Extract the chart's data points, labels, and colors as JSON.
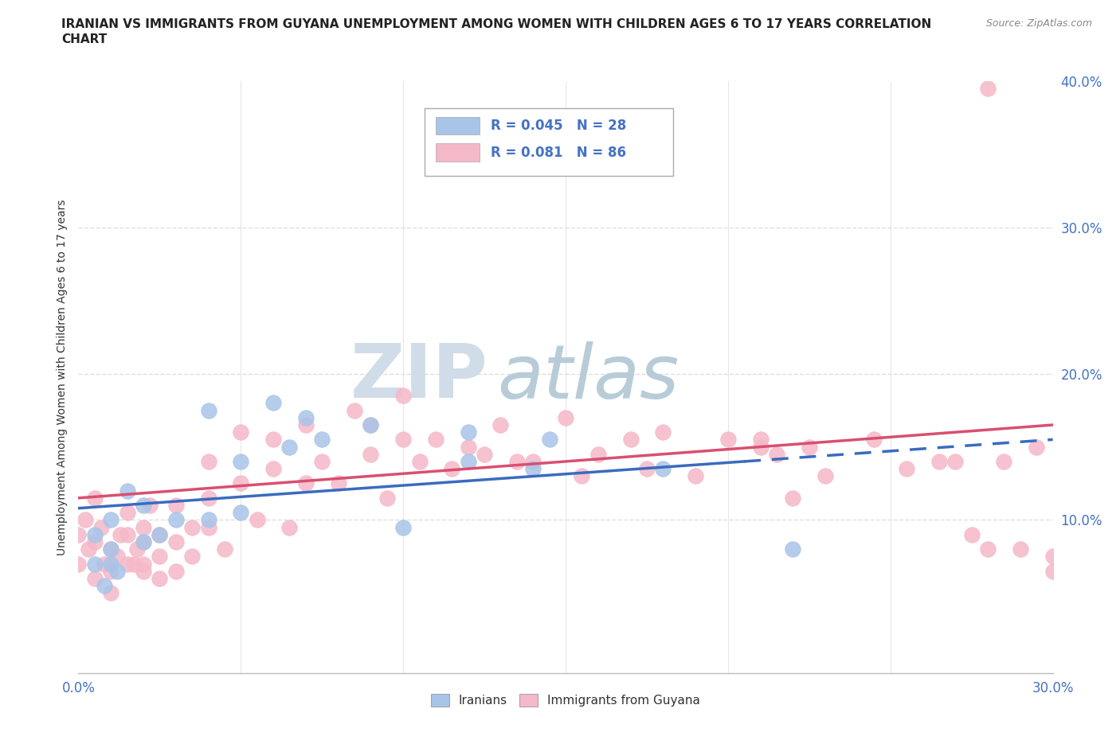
{
  "title_line1": "IRANIAN VS IMMIGRANTS FROM GUYANA UNEMPLOYMENT AMONG WOMEN WITH CHILDREN AGES 6 TO 17 YEARS CORRELATION",
  "title_line2": "CHART",
  "source": "Source: ZipAtlas.com",
  "ylabel": "Unemployment Among Women with Children Ages 6 to 17 years",
  "xlim": [
    0.0,
    0.3
  ],
  "ylim": [
    -0.005,
    0.4
  ],
  "xticks": [
    0.0,
    0.05,
    0.1,
    0.15,
    0.2,
    0.25,
    0.3
  ],
  "yticks": [
    0.0,
    0.1,
    0.2,
    0.3,
    0.4
  ],
  "iranian_color": "#a8c4e8",
  "guyana_color": "#f5b8c8",
  "iranian_line_color": "#3a6bbf",
  "guyana_line_color": "#d94f70",
  "legend_R_iranian": "0.045",
  "legend_N_iranian": "28",
  "legend_R_guyana": "0.081",
  "legend_N_guyana": "86",
  "watermark_zip": "ZIP",
  "watermark_atlas": "atlas",
  "watermark_color_zip": "#d0dde8",
  "watermark_color_atlas": "#b8ccd8",
  "iranians_label": "Iranians",
  "guyana_label": "Immigrants from Guyana",
  "iranians_x": [
    0.005,
    0.005,
    0.008,
    0.01,
    0.01,
    0.01,
    0.012,
    0.015,
    0.02,
    0.02,
    0.025,
    0.03,
    0.04,
    0.04,
    0.05,
    0.05,
    0.06,
    0.065,
    0.07,
    0.075,
    0.09,
    0.1,
    0.12,
    0.12,
    0.14,
    0.145,
    0.18,
    0.22
  ],
  "iranians_y": [
    0.07,
    0.09,
    0.055,
    0.07,
    0.08,
    0.1,
    0.065,
    0.12,
    0.085,
    0.11,
    0.09,
    0.1,
    0.1,
    0.175,
    0.105,
    0.14,
    0.18,
    0.15,
    0.17,
    0.155,
    0.165,
    0.095,
    0.14,
    0.16,
    0.135,
    0.155,
    0.135,
    0.08
  ],
  "guyana_x": [
    0.0,
    0.0,
    0.002,
    0.003,
    0.005,
    0.005,
    0.005,
    0.007,
    0.008,
    0.01,
    0.01,
    0.01,
    0.012,
    0.013,
    0.015,
    0.015,
    0.015,
    0.017,
    0.018,
    0.02,
    0.02,
    0.02,
    0.02,
    0.022,
    0.025,
    0.025,
    0.025,
    0.03,
    0.03,
    0.03,
    0.035,
    0.035,
    0.04,
    0.04,
    0.04,
    0.045,
    0.05,
    0.05,
    0.055,
    0.06,
    0.06,
    0.065,
    0.07,
    0.07,
    0.075,
    0.08,
    0.085,
    0.09,
    0.09,
    0.095,
    0.1,
    0.1,
    0.105,
    0.11,
    0.115,
    0.12,
    0.125,
    0.13,
    0.135,
    0.14,
    0.15,
    0.155,
    0.16,
    0.17,
    0.175,
    0.18,
    0.19,
    0.2,
    0.21,
    0.21,
    0.215,
    0.22,
    0.225,
    0.23,
    0.245,
    0.255,
    0.265,
    0.27,
    0.275,
    0.28,
    0.285,
    0.29,
    0.295,
    0.28,
    0.3,
    0.3
  ],
  "guyana_y": [
    0.07,
    0.09,
    0.1,
    0.08,
    0.115,
    0.085,
    0.06,
    0.095,
    0.07,
    0.08,
    0.065,
    0.05,
    0.075,
    0.09,
    0.07,
    0.09,
    0.105,
    0.07,
    0.08,
    0.07,
    0.095,
    0.085,
    0.065,
    0.11,
    0.09,
    0.075,
    0.06,
    0.11,
    0.085,
    0.065,
    0.095,
    0.075,
    0.095,
    0.14,
    0.115,
    0.08,
    0.16,
    0.125,
    0.1,
    0.135,
    0.155,
    0.095,
    0.165,
    0.125,
    0.14,
    0.125,
    0.175,
    0.145,
    0.165,
    0.115,
    0.155,
    0.185,
    0.14,
    0.155,
    0.135,
    0.15,
    0.145,
    0.165,
    0.14,
    0.14,
    0.17,
    0.13,
    0.145,
    0.155,
    0.135,
    0.16,
    0.13,
    0.155,
    0.15,
    0.155,
    0.145,
    0.115,
    0.15,
    0.13,
    0.155,
    0.135,
    0.14,
    0.14,
    0.09,
    0.08,
    0.14,
    0.08,
    0.15,
    0.395,
    0.075,
    0.065
  ],
  "background_color": "#ffffff",
  "plot_bg_color": "#ffffff",
  "grid_color": "#d8d8d8",
  "iran_trend_start_x": 0.0,
  "iran_trend_start_y": 0.108,
  "iran_trend_end_solid_x": 0.205,
  "iran_trend_end_y": 0.14,
  "iran_trend_end_dash_x": 0.3,
  "iran_trend_dash_end_y": 0.155,
  "guyana_trend_start_x": 0.0,
  "guyana_trend_start_y": 0.115,
  "guyana_trend_end_x": 0.3,
  "guyana_trend_end_y": 0.165
}
